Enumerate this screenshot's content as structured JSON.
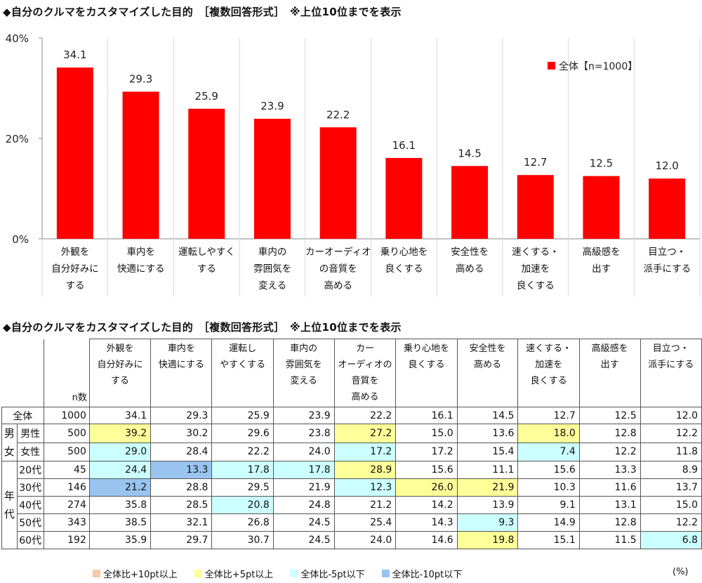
{
  "chart_title": "◆自分のクルマをカスタマイズした目的　［複数回答形式］　※上位10位までを表示",
  "table_title": "◆自分のクルマをカスタマイズした目的　［複数回答形式］　※上位10位までを表示",
  "colors": {
    "bar": "#ff0000",
    "plus10": "#f9c9a8",
    "plus5": "#ffff99",
    "minus5": "#ccffff",
    "minus10": "#99c4f0"
  },
  "chart_data": {
    "type": "bar",
    "categories": [
      [
        "外観を",
        "自分好みに",
        "する"
      ],
      [
        "車内を",
        "快適にする"
      ],
      [
        "運転しやすく",
        "する"
      ],
      [
        "車内の",
        "雰囲気を",
        "変える"
      ],
      [
        "カーオーディオ",
        "の音質を",
        "高める"
      ],
      [
        "乗り心地を",
        "良くする"
      ],
      [
        "安全性を",
        "高める"
      ],
      [
        "速くする・",
        "加速を",
        "良くする"
      ],
      [
        "高級感を",
        "出す"
      ],
      [
        "目立つ・",
        "派手にする"
      ]
    ],
    "series": [
      {
        "name": "全体【n=1000】",
        "values": [
          34.1,
          29.3,
          25.9,
          23.9,
          22.2,
          16.1,
          14.5,
          12.7,
          12.5,
          12.0
        ]
      }
    ],
    "ylim": [
      0,
      40
    ],
    "yticks": [
      "0%",
      "20%",
      "40%"
    ],
    "grid": "vertical-category-separators",
    "legend_position": "top-right"
  },
  "table": {
    "n_label": "n数",
    "headers": [
      [
        "外観を",
        "自分好みに",
        "する"
      ],
      [
        "車内を",
        "快適にする"
      ],
      [
        "運転し",
        "やすくする"
      ],
      [
        "車内の",
        "雰囲気を",
        "変える"
      ],
      [
        "カー",
        "オーディオの",
        "音質を",
        "高める"
      ],
      [
        "乗り心地を",
        "良くする"
      ],
      [
        "安全性を",
        "高める"
      ],
      [
        "速くする・",
        "加速を",
        "良くする"
      ],
      [
        "高級感を",
        "出す"
      ],
      [
        "目立つ・",
        "派手にする"
      ]
    ],
    "groups": [
      {
        "label": [
          "男",
          "女"
        ],
        "rows": [
          1,
          2
        ]
      },
      {
        "label": [
          "年",
          "代"
        ],
        "rows": [
          3,
          4,
          5,
          6,
          7,
          8
        ]
      }
    ],
    "rows": [
      {
        "label": "全体",
        "n": "1000",
        "values": [
          "34.1",
          "29.3",
          "25.9",
          "23.9",
          "22.2",
          "16.1",
          "14.5",
          "12.7",
          "12.5",
          "12.0"
        ],
        "hl": [
          "",
          "",
          "",
          "",
          "",
          "",
          "",
          "",
          "",
          ""
        ]
      },
      {
        "label": "男性",
        "n": "500",
        "values": [
          "39.2",
          "30.2",
          "29.6",
          "23.8",
          "27.2",
          "15.0",
          "13.6",
          "18.0",
          "12.8",
          "12.2"
        ],
        "hl": [
          "plus5",
          "",
          "",
          "",
          "plus5",
          "",
          "",
          "plus5",
          "",
          ""
        ]
      },
      {
        "label": "女性",
        "n": "500",
        "values": [
          "29.0",
          "28.4",
          "22.2",
          "24.0",
          "17.2",
          "17.2",
          "15.4",
          "7.4",
          "12.2",
          "11.8"
        ],
        "hl": [
          "minus5",
          "",
          "",
          "",
          "minus5",
          "",
          "",
          "minus5",
          "",
          ""
        ]
      },
      {
        "label": "20代",
        "n": "45",
        "values": [
          "24.4",
          "13.3",
          "17.8",
          "17.8",
          "28.9",
          "15.6",
          "11.1",
          "15.6",
          "13.3",
          "8.9"
        ],
        "hl": [
          "minus5",
          "minus10",
          "minus5",
          "minus5",
          "plus5",
          "",
          "",
          "",
          "",
          ""
        ]
      },
      {
        "label": "30代",
        "n": "146",
        "values": [
          "21.2",
          "28.8",
          "29.5",
          "21.9",
          "12.3",
          "26.0",
          "21.9",
          "10.3",
          "11.6",
          "13.7"
        ],
        "hl": [
          "minus10",
          "",
          "",
          "",
          "minus5",
          "plus5",
          "plus5",
          "",
          "",
          ""
        ]
      },
      {
        "label": "40代",
        "n": "274",
        "values": [
          "35.8",
          "28.5",
          "20.8",
          "24.8",
          "21.2",
          "14.2",
          "13.9",
          "9.1",
          "13.1",
          "15.0"
        ],
        "hl": [
          "",
          "",
          "minus5",
          "",
          "",
          "",
          "",
          "",
          "",
          ""
        ]
      },
      {
        "label": "50代",
        "n": "343",
        "values": [
          "38.5",
          "32.1",
          "26.8",
          "24.5",
          "25.4",
          "14.3",
          "9.3",
          "14.9",
          "12.8",
          "12.2"
        ],
        "hl": [
          "",
          "",
          "",
          "",
          "",
          "",
          "minus5",
          "",
          "",
          ""
        ]
      },
      {
        "label": "60代",
        "n": "192",
        "values": [
          "35.9",
          "29.7",
          "30.7",
          "24.5",
          "24.0",
          "14.6",
          "19.8",
          "15.1",
          "11.5",
          "6.8"
        ],
        "hl": [
          "",
          "",
          "",
          "",
          "",
          "",
          "plus5",
          "",
          "",
          "minus5"
        ]
      }
    ]
  },
  "legend": [
    {
      "key": "plus10",
      "label": "全体比+10pt以上"
    },
    {
      "key": "plus5",
      "label": "全体比+5pt以上"
    },
    {
      "key": "minus5",
      "label": "全体比-5pt以下"
    },
    {
      "key": "minus10",
      "label": "全体比-10pt以下"
    }
  ],
  "unit": "(%)"
}
